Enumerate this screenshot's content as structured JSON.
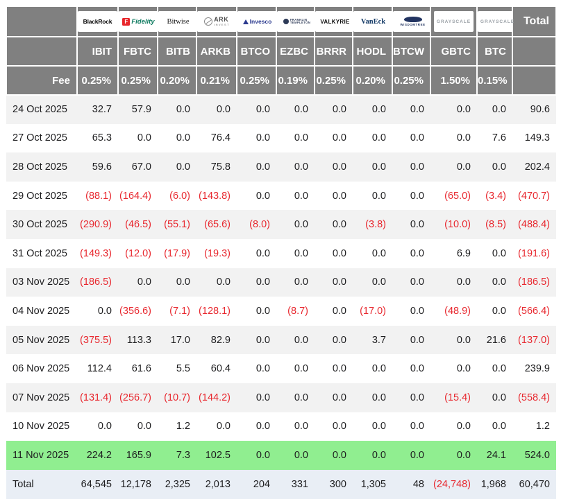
{
  "colors": {
    "header_bg": "#808080",
    "header_text": "#ffffff",
    "text": "#1d1d1f",
    "negative": "#e8282f",
    "stripe": "#f2f2f2",
    "highlight_row": "#90ee90",
    "totals_row": "#e9eef5"
  },
  "chart_data": {
    "type": "table",
    "fee_row_label": "Fee",
    "total_column_label": "Total",
    "total_row_label": "Total",
    "legend_position": "none",
    "grid": "header-only",
    "providers": [
      {
        "name": "BlackRock",
        "logo": "blackrock",
        "logo_text": "BlackRock",
        "ticker": "IBIT",
        "fee": "0.25%"
      },
      {
        "name": "Fidelity",
        "logo": "fidelity",
        "icon_letter": "F",
        "logo_text": "Fidelity",
        "ticker": "FBTC",
        "fee": "0.25%"
      },
      {
        "name": "Bitwise",
        "logo": "bitwise",
        "logo_text": "Bitwise",
        "ticker": "BITB",
        "fee": "0.20%"
      },
      {
        "name": "ARK Invest",
        "logo": "ark",
        "logo_lines": [
          "ARK",
          "INVEST"
        ],
        "ticker": "ARKB",
        "fee": "0.21%"
      },
      {
        "name": "Invesco",
        "logo": "invesco",
        "logo_text": "Invesco",
        "ticker": "BTCO",
        "fee": "0.25%"
      },
      {
        "name": "Franklin Templeton",
        "logo": "franklin",
        "logo_lines": [
          "FRANKLIN",
          "TEMPLETON"
        ],
        "ticker": "EZBC",
        "fee": "0.19%"
      },
      {
        "name": "Valkyrie",
        "logo": "valkyrie",
        "logo_text": "VALKYRIE",
        "ticker": "BRRR",
        "fee": "0.25%"
      },
      {
        "name": "VanEck",
        "logo": "vaneck",
        "logo_text": "VanEck",
        "ticker": "HODL",
        "fee": "0.20%"
      },
      {
        "name": "WisdomTree",
        "logo": "wisdomtree",
        "logo_text": "WISDOMTREE",
        "ticker": "BTCW",
        "fee": "0.25%"
      },
      {
        "name": "Grayscale",
        "logo": "grayscale",
        "logo_text": "GRAYSCALE",
        "ticker": "GBTC",
        "fee": "1.50%"
      },
      {
        "name": "Grayscale",
        "logo": "grayscale",
        "logo_text": "GRAYSCALE",
        "ticker": "BTC",
        "fee": "0.15%"
      }
    ],
    "rows": [
      {
        "date": "24 Oct 2025",
        "values": [
          "32.7",
          "57.9",
          "0.0",
          "0.0",
          "0.0",
          "0.0",
          "0.0",
          "0.0",
          "0.0",
          "0.0",
          "0.0"
        ],
        "total": "90.6",
        "highlight": false
      },
      {
        "date": "27 Oct 2025",
        "values": [
          "65.3",
          "0.0",
          "0.0",
          "76.4",
          "0.0",
          "0.0",
          "0.0",
          "0.0",
          "0.0",
          "0.0",
          "7.6"
        ],
        "total": "149.3",
        "highlight": false
      },
      {
        "date": "28 Oct 2025",
        "values": [
          "59.6",
          "67.0",
          "0.0",
          "75.8",
          "0.0",
          "0.0",
          "0.0",
          "0.0",
          "0.0",
          "0.0",
          "0.0"
        ],
        "total": "202.4",
        "highlight": false
      },
      {
        "date": "29 Oct 2025",
        "values": [
          "(88.1)",
          "(164.4)",
          "(6.0)",
          "(143.8)",
          "0.0",
          "0.0",
          "0.0",
          "0.0",
          "0.0",
          "(65.0)",
          "(3.4)"
        ],
        "total": "(470.7)",
        "highlight": false
      },
      {
        "date": "30 Oct 2025",
        "values": [
          "(290.9)",
          "(46.5)",
          "(55.1)",
          "(65.6)",
          "(8.0)",
          "0.0",
          "0.0",
          "(3.8)",
          "0.0",
          "(10.0)",
          "(8.5)"
        ],
        "total": "(488.4)",
        "highlight": false
      },
      {
        "date": "31 Oct 2025",
        "values": [
          "(149.3)",
          "(12.0)",
          "(17.9)",
          "(19.3)",
          "0.0",
          "0.0",
          "0.0",
          "0.0",
          "0.0",
          "6.9",
          "0.0"
        ],
        "total": "(191.6)",
        "highlight": false
      },
      {
        "date": "03 Nov 2025",
        "values": [
          "(186.5)",
          "0.0",
          "0.0",
          "0.0",
          "0.0",
          "0.0",
          "0.0",
          "0.0",
          "0.0",
          "0.0",
          "0.0"
        ],
        "total": "(186.5)",
        "highlight": false
      },
      {
        "date": "04 Nov 2025",
        "values": [
          "0.0",
          "(356.6)",
          "(7.1)",
          "(128.1)",
          "0.0",
          "(8.7)",
          "0.0",
          "(17.0)",
          "0.0",
          "(48.9)",
          "0.0"
        ],
        "total": "(566.4)",
        "highlight": false
      },
      {
        "date": "05 Nov 2025",
        "values": [
          "(375.5)",
          "113.3",
          "17.0",
          "82.9",
          "0.0",
          "0.0",
          "0.0",
          "3.7",
          "0.0",
          "0.0",
          "21.6"
        ],
        "total": "(137.0)",
        "highlight": false
      },
      {
        "date": "06 Nov 2025",
        "values": [
          "112.4",
          "61.6",
          "5.5",
          "60.4",
          "0.0",
          "0.0",
          "0.0",
          "0.0",
          "0.0",
          "0.0",
          "0.0"
        ],
        "total": "239.9",
        "highlight": false
      },
      {
        "date": "07 Nov 2025",
        "values": [
          "(131.4)",
          "(256.7)",
          "(10.7)",
          "(144.2)",
          "0.0",
          "0.0",
          "0.0",
          "0.0",
          "0.0",
          "(15.4)",
          "0.0"
        ],
        "total": "(558.4)",
        "highlight": false
      },
      {
        "date": "10 Nov 2025",
        "values": [
          "0.0",
          "0.0",
          "1.2",
          "0.0",
          "0.0",
          "0.0",
          "0.0",
          "0.0",
          "0.0",
          "0.0",
          "0.0"
        ],
        "total": "1.2",
        "highlight": false
      },
      {
        "date": "11 Nov 2025",
        "values": [
          "224.2",
          "165.9",
          "7.3",
          "102.5",
          "0.0",
          "0.0",
          "0.0",
          "0.0",
          "0.0",
          "0.0",
          "24.1"
        ],
        "total": "524.0",
        "highlight": true
      }
    ],
    "totals_row": {
      "values": [
        "64,545",
        "12,178",
        "2,325",
        "2,013",
        "204",
        "331",
        "300",
        "1,305",
        "48",
        "(24,748)",
        "1,968"
      ],
      "total": "60,470"
    },
    "notes": {
      "negative_format": "parentheses",
      "negative_values_shown_in_red": true
    }
  }
}
